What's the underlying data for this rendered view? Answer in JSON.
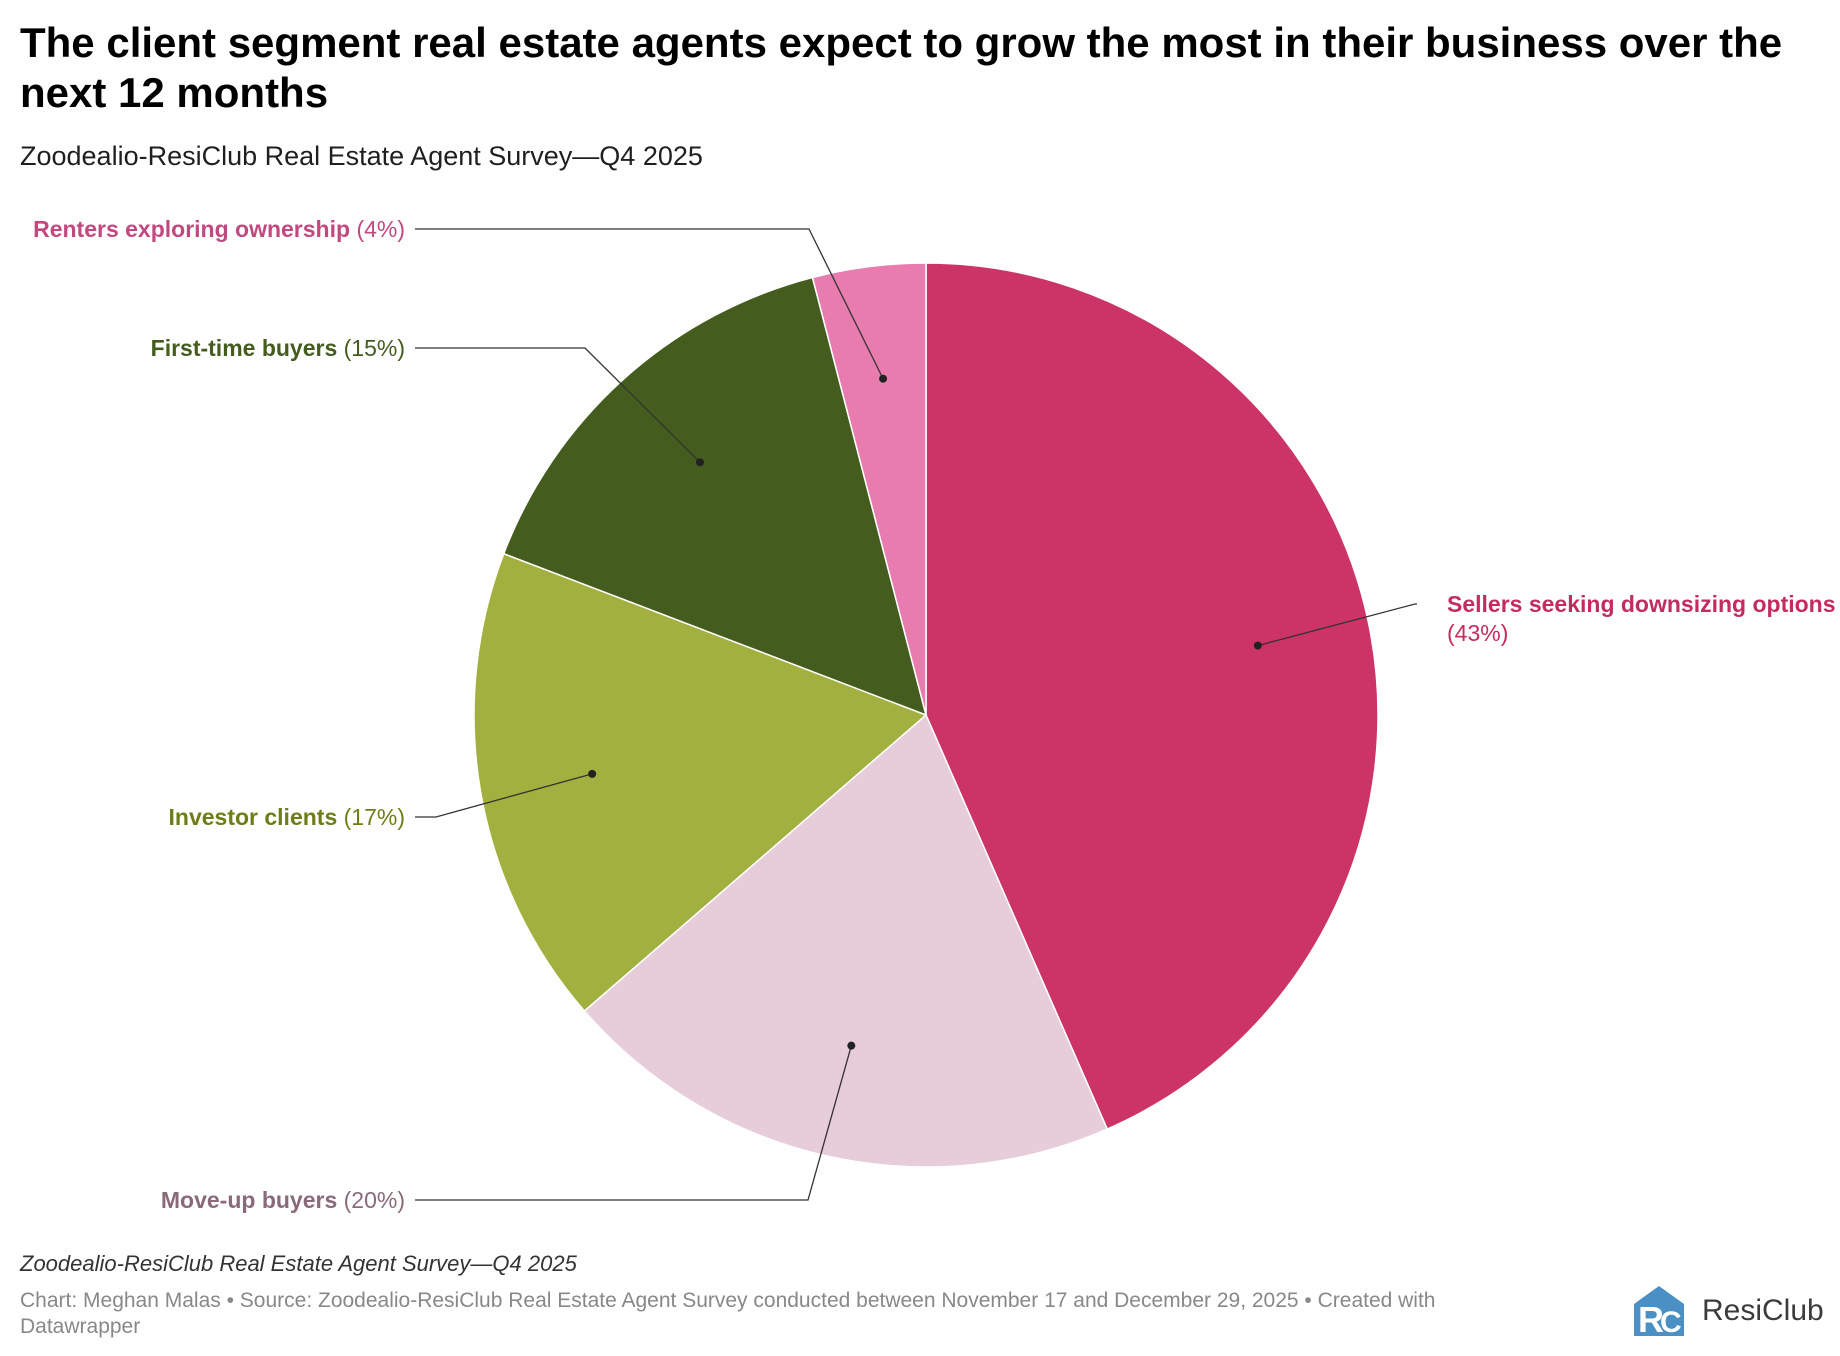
{
  "header": {
    "title": "The client segment real estate agents expect to grow the most in their business over the next 12 months",
    "subtitle": "Zoodealio-ResiClub Real Estate Agent Survey—Q4 2025"
  },
  "chart_data": {
    "type": "pie",
    "title": "The client segment real estate agents expect to grow the most in their business over the next 12 months",
    "subtitle": "Zoodealio-ResiClub Real Estate Agent Survey—Q4 2025",
    "unit": "%",
    "slices": [
      {
        "label": "Sellers seeking downsizing options",
        "value": 43,
        "value_text": "(43%)",
        "color": "#cc3366",
        "label_color": "#c42c5f"
      },
      {
        "label": "Move-up buyers",
        "value": 20,
        "value_text": "(20%)",
        "color": "#e7ccd9",
        "label_color": "#8a6a7a"
      },
      {
        "label": "Investor clients",
        "value": 17,
        "value_text": "(17%)",
        "color": "#a2b040",
        "label_color": "#6f7d18"
      },
      {
        "label": "First-time buyers",
        "value": 15,
        "value_text": "(15%)",
        "color": "#445c1e",
        "label_color": "#445c1e"
      },
      {
        "label": "Renters exploring ownership",
        "value": 4,
        "value_text": "(4%)",
        "color": "#e87cae",
        "label_color": "#c2497f"
      }
    ],
    "start": "12 o'clock",
    "direction": "clockwise",
    "legend": "none (direct labels)"
  },
  "footer": {
    "note": "Zoodealio-ResiClub Real Estate Agent Survey—Q4 2025",
    "credit": "Chart: Meghan Malas • Source: Zoodealio-ResiClub Real Estate Agent Survey conducted between November 17 and December 29, 2025 • Created with Datawrapper",
    "logo_text": "ResiClub",
    "logo_color": "#4a90c4"
  }
}
